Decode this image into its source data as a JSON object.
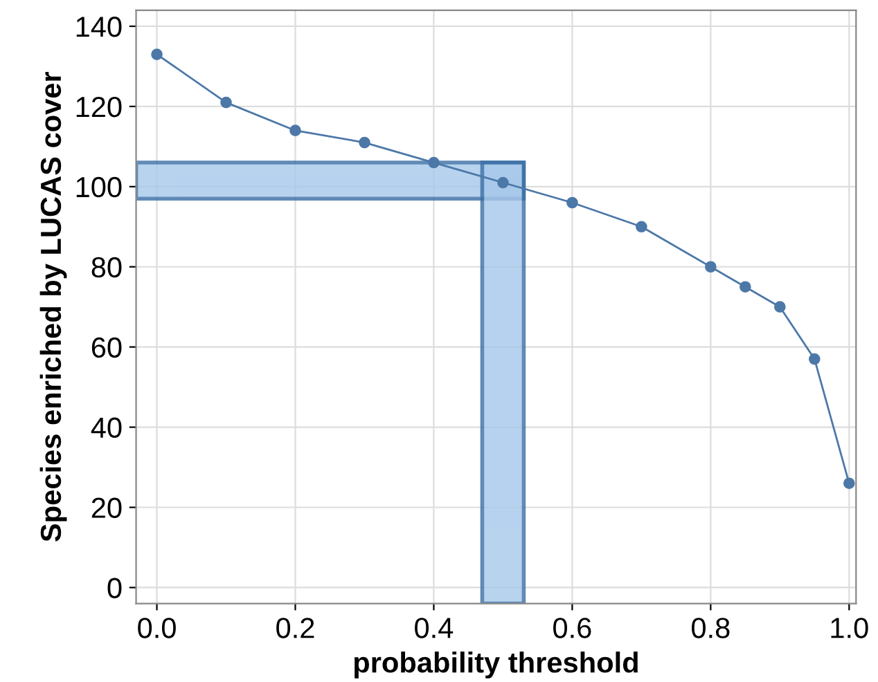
{
  "chart_data": {
    "type": "line",
    "xlabel": "probability threshold",
    "ylabel": "Species enriched by LUCAS cover",
    "x": [
      0.0,
      0.1,
      0.2,
      0.3,
      0.4,
      0.5,
      0.6,
      0.7,
      0.8,
      0.85,
      0.9,
      0.95,
      1.0
    ],
    "series": [
      {
        "color": "#4c78a8",
        "values": [
          133,
          121,
          114,
          111,
          106,
          101,
          96,
          90,
          80,
          75,
          70,
          57,
          26
        ]
      }
    ],
    "marker": "circle",
    "line_style": "solid",
    "grid": true,
    "xlim": [
      -0.03,
      1.01
    ],
    "ylim": [
      -4,
      144
    ],
    "xticks": [
      {
        "value": 0,
        "label": "0.0"
      },
      0.2,
      0.4,
      0.6,
      0.8,
      {
        "value": 1,
        "label": "1.0"
      }
    ],
    "yticks": [
      0,
      20,
      40,
      60,
      80,
      100,
      120,
      140
    ],
    "bands": [
      {
        "axis": "y",
        "from": 97,
        "to": 106,
        "color": "#a6c8ea"
      },
      {
        "axis": "x",
        "from": 0.47,
        "to": 0.53,
        "color": "#a6c8ea"
      }
    ]
  }
}
